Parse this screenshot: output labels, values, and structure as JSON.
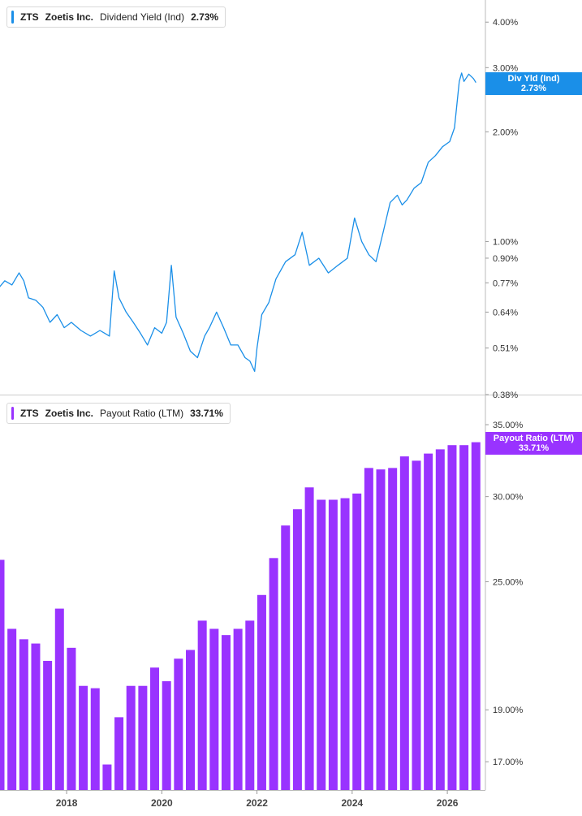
{
  "chart_data": [
    {
      "type": "line",
      "ticker": "ZTS",
      "company": "Zoetis Inc.",
      "metric": "Dividend Yield (Ind)",
      "current_value": "2.73%",
      "tag_label": "Div Yld (Ind)",
      "tag_value": "2.73%",
      "color": "#1a8fe8",
      "y_scale": "log",
      "ylim": [
        0.38,
        4.6
      ],
      "y_ticks": [
        "4.00%",
        "3.00%",
        "2.00%",
        "1.00%",
        "0.90%",
        "0.77%",
        "0.64%",
        "0.51%",
        "0.38%"
      ],
      "y_tick_values": [
        4.0,
        3.0,
        2.0,
        1.0,
        0.9,
        0.77,
        0.64,
        0.51,
        0.38
      ],
      "x": [
        2016.55,
        2016.7,
        2016.85,
        2017.0,
        2017.1,
        2017.2,
        2017.35,
        2017.5,
        2017.65,
        2017.8,
        2017.95,
        2018.1,
        2018.3,
        2018.5,
        2018.7,
        2018.9,
        2019.0,
        2019.1,
        2019.25,
        2019.4,
        2019.55,
        2019.7,
        2019.85,
        2020.0,
        2020.1,
        2020.2,
        2020.3,
        2020.45,
        2020.6,
        2020.75,
        2020.9,
        2021.0,
        2021.15,
        2021.3,
        2021.45,
        2021.6,
        2021.75,
        2021.85,
        2021.95,
        2022.0,
        2022.1,
        2022.25,
        2022.4,
        2022.6,
        2022.8,
        2022.95,
        2023.1,
        2023.3,
        2023.5,
        2023.7,
        2023.9,
        2024.05,
        2024.2,
        2024.35,
        2024.5,
        2024.65,
        2024.8,
        2024.95,
        2025.05,
        2025.15,
        2025.3,
        2025.45,
        2025.6,
        2025.75,
        2025.9,
        2026.05,
        2026.15,
        2026.25,
        2026.3,
        2026.35,
        2026.45,
        2026.55,
        2026.6
      ],
      "y": [
        0.74,
        0.78,
        0.76,
        0.82,
        0.78,
        0.7,
        0.69,
        0.66,
        0.6,
        0.63,
        0.58,
        0.6,
        0.57,
        0.55,
        0.57,
        0.55,
        0.83,
        0.7,
        0.64,
        0.6,
        0.56,
        0.52,
        0.58,
        0.56,
        0.6,
        0.86,
        0.62,
        0.56,
        0.5,
        0.48,
        0.55,
        0.58,
        0.64,
        0.58,
        0.52,
        0.52,
        0.48,
        0.47,
        0.44,
        0.51,
        0.63,
        0.68,
        0.79,
        0.88,
        0.92,
        1.06,
        0.86,
        0.9,
        0.82,
        0.86,
        0.9,
        1.16,
        1.0,
        0.92,
        0.88,
        1.06,
        1.28,
        1.34,
        1.26,
        1.3,
        1.4,
        1.45,
        1.65,
        1.72,
        1.82,
        1.88,
        2.05,
        2.75,
        2.9,
        2.75,
        2.88,
        2.8,
        2.73
      ]
    },
    {
      "type": "bar",
      "ticker": "ZTS",
      "company": "Zoetis Inc.",
      "metric": "Payout Ratio (LTM)",
      "current_value": "33.71%",
      "tag_label": "Payout Ratio (LTM)",
      "tag_value": "33.71%",
      "color": "#9933ff",
      "y_scale": "log",
      "ylim": [
        16.0,
        37.2
      ],
      "y_ticks": [
        "35.00%",
        "30.00%",
        "25.00%",
        "19.00%",
        "17.00%"
      ],
      "y_tick_values": [
        35.0,
        30.0,
        25.0,
        19.0,
        17.0
      ],
      "x": [
        2016.6,
        2016.85,
        2017.1,
        2017.35,
        2017.6,
        2017.85,
        2018.1,
        2018.35,
        2018.6,
        2018.85,
        2019.1,
        2019.35,
        2019.6,
        2019.85,
        2020.1,
        2020.35,
        2020.6,
        2020.85,
        2021.1,
        2021.35,
        2021.6,
        2021.85,
        2022.1,
        2022.35,
        2022.6,
        2022.85,
        2023.1,
        2023.35,
        2023.6,
        2023.85,
        2024.1,
        2024.35,
        2024.6,
        2024.85,
        2025.1,
        2025.35,
        2025.6,
        2025.85,
        2026.1,
        2026.35,
        2026.6
      ],
      "values": [
        26.2,
        22.6,
        22.1,
        21.9,
        21.1,
        23.6,
        21.7,
        20.0,
        19.9,
        16.9,
        18.7,
        20.0,
        20.0,
        20.8,
        20.2,
        21.2,
        21.6,
        23.0,
        22.6,
        22.3,
        22.6,
        23.0,
        24.3,
        26.3,
        28.2,
        29.2,
        30.6,
        29.8,
        29.8,
        29.9,
        30.2,
        31.9,
        31.8,
        31.9,
        32.7,
        32.4,
        32.9,
        33.2,
        33.5,
        33.5,
        33.71
      ]
    }
  ],
  "x_axis": {
    "ticks": [
      "2018",
      "2020",
      "2022",
      "2024",
      "2026"
    ],
    "tick_values": [
      2018,
      2020,
      2022,
      2024,
      2026
    ],
    "xlim": [
      2016.6,
      2026.8
    ]
  }
}
